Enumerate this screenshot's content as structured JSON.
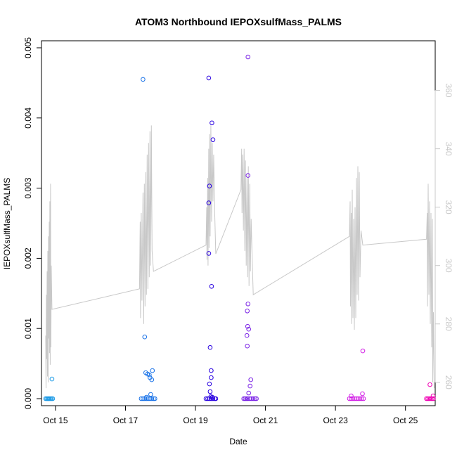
{
  "chart_data": {
    "type": "scatter",
    "title": "ATOM3 Northbound IEPOXsulfMass_PALMS",
    "xlabel": "Date",
    "ylabel": "IEPOXsulfMass_PALMS",
    "x_ticks": [
      "Oct 15",
      "Oct 17",
      "Oct 19",
      "Oct 21",
      "Oct 23",
      "Oct 25"
    ],
    "x_tick_days": [
      15,
      17,
      19,
      21,
      23,
      25
    ],
    "xlim": [
      14.6,
      25.85
    ],
    "ylim": [
      -0.0001,
      0.0051
    ],
    "y_ticks": [
      0.0,
      0.001,
      0.002,
      0.003,
      0.004,
      0.005
    ],
    "y_tick_labels": [
      "0.000",
      "0.001",
      "0.002",
      "0.003",
      "0.004",
      "0.005"
    ],
    "y2lim": [
      252,
      377
    ],
    "y2_ticks": [
      260,
      280,
      300,
      320,
      340,
      360
    ],
    "y2_tick_labels": [
      "260",
      "280",
      "300",
      "320",
      "340",
      "360"
    ],
    "y2_color": "#c8c8c8",
    "line_color": "#c8c8c8",
    "scatter_series": [
      {
        "color": "#1e9be6",
        "points": [
          [
            14.72,
            0
          ],
          [
            14.75,
            0
          ],
          [
            14.78,
            0
          ],
          [
            14.8,
            0
          ],
          [
            14.83,
            0
          ],
          [
            14.86,
            0
          ],
          [
            14.89,
            0
          ],
          [
            14.92,
            0
          ],
          [
            14.9,
            0.00028
          ]
        ]
      },
      {
        "color": "#1a73e8",
        "points": [
          [
            17.45,
            0
          ],
          [
            17.5,
            0
          ],
          [
            17.55,
            0
          ],
          [
            17.6,
            0
          ],
          [
            17.65,
            0
          ],
          [
            17.7,
            0
          ],
          [
            17.75,
            0
          ],
          [
            17.8,
            0
          ],
          [
            17.84,
            0
          ],
          [
            17.5,
            0.00455
          ],
          [
            17.55,
            0.00088
          ],
          [
            17.58,
            0.00037
          ],
          [
            17.63,
            0.00035
          ],
          [
            17.68,
            0.00034
          ],
          [
            17.7,
            0.0003
          ],
          [
            17.75,
            0.00027
          ],
          [
            17.77,
            0.0004
          ],
          [
            17.6,
            2e-05
          ],
          [
            17.72,
            6e-05
          ]
        ]
      },
      {
        "color": "#2800e0",
        "points": [
          [
            19.3,
            0
          ],
          [
            19.35,
            0
          ],
          [
            19.4,
            0
          ],
          [
            19.45,
            0
          ],
          [
            19.5,
            0
          ],
          [
            19.55,
            0
          ],
          [
            19.58,
            0
          ],
          [
            19.38,
            0.00457
          ],
          [
            19.47,
            0.00393
          ],
          [
            19.5,
            0.00369
          ],
          [
            19.4,
            0.00303
          ],
          [
            19.38,
            0.00279
          ],
          [
            19.38,
            0.00207
          ],
          [
            19.46,
            0.0016
          ],
          [
            19.42,
            0.00073
          ],
          [
            19.45,
            0.0004
          ],
          [
            19.45,
            0.0003
          ],
          [
            19.4,
            0.00021
          ],
          [
            19.42,
            0.0001
          ],
          [
            19.44,
            3e-05
          ],
          [
            19.48,
            2e-05
          ]
        ]
      },
      {
        "color": "#7a22e6",
        "points": [
          [
            20.38,
            0
          ],
          [
            20.42,
            0
          ],
          [
            20.46,
            0
          ],
          [
            20.5,
            0
          ],
          [
            20.55,
            0
          ],
          [
            20.6,
            0
          ],
          [
            20.65,
            0
          ],
          [
            20.7,
            0
          ],
          [
            20.74,
            0
          ],
          [
            20.5,
            0.00487
          ],
          [
            20.5,
            0.00318
          ],
          [
            20.5,
            0.00135
          ],
          [
            20.48,
            0.00125
          ],
          [
            20.49,
            0.00103
          ],
          [
            20.52,
            0.00099
          ],
          [
            20.47,
            0.0009
          ],
          [
            20.48,
            0.00075
          ],
          [
            20.58,
            0.00027
          ],
          [
            20.56,
            0.00018
          ],
          [
            20.52,
            8e-05
          ]
        ]
      },
      {
        "color": "#d21ee6",
        "points": [
          [
            23.4,
            0
          ],
          [
            23.45,
            0
          ],
          [
            23.5,
            0
          ],
          [
            23.55,
            0
          ],
          [
            23.6,
            0
          ],
          [
            23.65,
            0
          ],
          [
            23.7,
            0
          ],
          [
            23.75,
            0
          ],
          [
            23.8,
            0
          ],
          [
            23.78,
            0.00068
          ],
          [
            23.77,
            7e-05
          ],
          [
            23.45,
            4e-05
          ]
        ]
      },
      {
        "color": "#f000b4",
        "points": [
          [
            25.6,
            0
          ],
          [
            25.64,
            0
          ],
          [
            25.68,
            0
          ],
          [
            25.72,
            0
          ],
          [
            25.76,
            0
          ],
          [
            25.8,
            0
          ],
          [
            25.7,
            0.0002
          ],
          [
            25.79,
            4e-05
          ]
        ]
      }
    ],
    "line_series": [
      {
        "name": "",
        "points": [
          [
            14.72,
            276
          ],
          [
            14.73,
            258
          ],
          [
            14.74,
            290
          ],
          [
            14.75,
            268
          ],
          [
            14.76,
            298
          ],
          [
            14.77,
            262
          ],
          [
            14.78,
            305
          ],
          [
            14.79,
            260
          ],
          [
            14.8,
            310
          ],
          [
            14.81,
            275
          ],
          [
            14.82,
            315
          ],
          [
            14.83,
            270
          ],
          [
            14.84,
            322
          ],
          [
            14.85,
            266
          ],
          [
            14.86,
            328
          ],
          [
            14.87,
            272
          ],
          [
            14.88,
            300
          ],
          [
            14.9,
            285
          ],
          [
            17.4,
            292
          ],
          [
            17.42,
            315
          ],
          [
            17.43,
            282
          ],
          [
            17.45,
            318
          ],
          [
            17.47,
            288
          ],
          [
            17.5,
            325
          ],
          [
            17.52,
            280
          ],
          [
            17.54,
            328
          ],
          [
            17.56,
            286
          ],
          [
            17.58,
            332
          ],
          [
            17.6,
            290
          ],
          [
            17.62,
            338
          ],
          [
            17.64,
            292
          ],
          [
            17.66,
            342
          ],
          [
            17.68,
            296
          ],
          [
            17.7,
            346
          ],
          [
            17.72,
            300
          ],
          [
            17.74,
            348
          ],
          [
            17.76,
            305
          ],
          [
            17.8,
            298
          ],
          [
            19.3,
            307
          ],
          [
            19.32,
            320
          ],
          [
            19.33,
            302
          ],
          [
            19.35,
            330
          ],
          [
            19.36,
            300
          ],
          [
            19.38,
            340
          ],
          [
            19.39,
            306
          ],
          [
            19.4,
            345
          ],
          [
            19.42,
            310
          ],
          [
            19.44,
            348
          ],
          [
            19.46,
            315
          ],
          [
            19.48,
            342
          ],
          [
            19.5,
            322
          ],
          [
            19.52,
            338
          ],
          [
            19.55,
            318
          ],
          [
            19.58,
            304
          ],
          [
            20.3,
            326
          ],
          [
            20.32,
            340
          ],
          [
            20.33,
            318
          ],
          [
            20.35,
            338
          ],
          [
            20.37,
            312
          ],
          [
            20.39,
            340
          ],
          [
            20.41,
            305
          ],
          [
            20.43,
            336
          ],
          [
            20.45,
            300
          ],
          [
            20.47,
            330
          ],
          [
            20.49,
            296
          ],
          [
            20.51,
            334
          ],
          [
            20.53,
            293
          ],
          [
            20.55,
            328
          ],
          [
            20.57,
            298
          ],
          [
            20.59,
            316
          ],
          [
            20.62,
            302
          ],
          [
            20.65,
            290
          ],
          [
            23.4,
            310
          ],
          [
            23.42,
            322
          ],
          [
            23.43,
            286
          ],
          [
            23.45,
            318
          ],
          [
            23.46,
            280
          ],
          [
            23.48,
            326
          ],
          [
            23.5,
            282
          ],
          [
            23.52,
            316
          ],
          [
            23.54,
            278
          ],
          [
            23.56,
            320
          ],
          [
            23.58,
            282
          ],
          [
            23.6,
            330
          ],
          [
            23.62,
            290
          ],
          [
            23.64,
            334
          ],
          [
            23.66,
            288
          ],
          [
            23.68,
            332
          ],
          [
            23.7,
            296
          ],
          [
            23.73,
            312
          ],
          [
            23.78,
            307
          ],
          [
            25.6,
            309
          ],
          [
            25.62,
            318
          ],
          [
            25.63,
            286
          ],
          [
            25.65,
            328
          ],
          [
            25.67,
            290
          ],
          [
            25.69,
            322
          ],
          [
            25.71,
            280
          ],
          [
            25.73,
            318
          ],
          [
            25.75,
            272
          ],
          [
            25.77,
            316
          ],
          [
            25.78,
            260
          ],
          [
            25.8,
            284
          ],
          [
            25.82,
            258
          ]
        ]
      }
    ]
  }
}
